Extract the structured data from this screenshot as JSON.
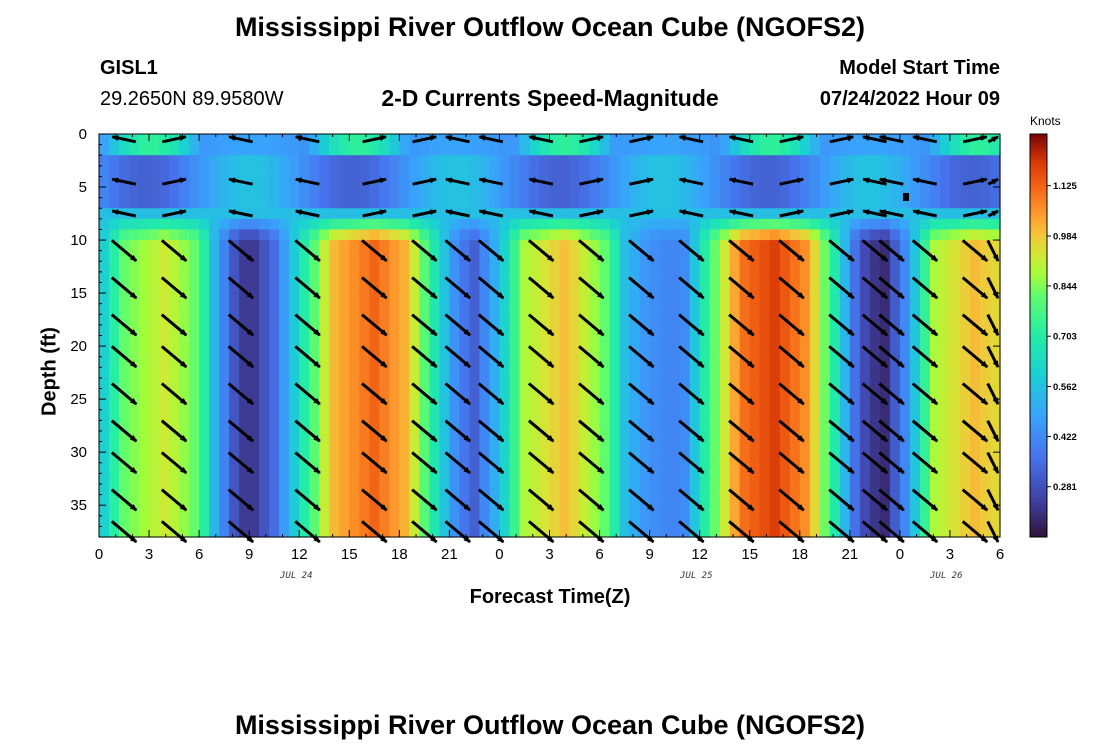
{
  "header": {
    "title": "Mississippi River Outflow Ocean Cube (NGOFS2)",
    "station_id": "GISL1",
    "station_coords": "29.2650N  89.9580W",
    "subtitle": "2-D Currents Speed-Magnitude",
    "model_start_label": "Model Start Time",
    "model_start_value": "07/24/2022 Hour 09"
  },
  "footer": {
    "title": "Mississippi River Outflow Ocean Cube (NGOFS2)"
  },
  "chart_data": {
    "type": "heatmap",
    "xlabel": "Forecast Time(Z)",
    "ylabel": "Depth (ft)",
    "x_unit": "hours",
    "x_range": [
      0,
      54
    ],
    "y_range": [
      0,
      38
    ],
    "y_inverted": true,
    "x_tick_values": [
      0,
      3,
      6,
      9,
      12,
      15,
      18,
      21,
      24,
      27,
      30,
      33,
      36,
      39,
      42,
      45,
      48,
      51,
      54
    ],
    "x_tick_labels": [
      "0",
      "3",
      "6",
      "9",
      "12",
      "15",
      "18",
      "21",
      "0",
      "3",
      "6",
      "9",
      "12",
      "15",
      "18",
      "21",
      "0",
      "3",
      "6"
    ],
    "y_ticks": [
      0,
      5,
      10,
      15,
      20,
      25,
      30,
      35
    ],
    "date_labels": [
      {
        "text": "JUL 24",
        "x": 12.5
      },
      {
        "text": "JUL 25",
        "x": 36.5
      },
      {
        "text": "JUL 26",
        "x": 51.5
      }
    ],
    "colorbar": {
      "label": "Knots",
      "ticks": [
        "0.281",
        "0.422",
        "0.562",
        "0.703",
        "0.844",
        "0.984",
        "1.125"
      ],
      "tick_values": [
        0.281,
        0.422,
        0.562,
        0.703,
        0.844,
        0.984,
        1.125
      ],
      "range": [
        0.14,
        1.27
      ]
    },
    "speed_profile": [
      {
        "x": 0,
        "v": 0.55
      },
      {
        "x": 1.5,
        "v": 0.82
      },
      {
        "x": 4,
        "v": 0.93
      },
      {
        "x": 6,
        "v": 0.8
      },
      {
        "x": 7,
        "v": 0.5
      },
      {
        "x": 8,
        "v": 0.3
      },
      {
        "x": 9,
        "v": 0.2
      },
      {
        "x": 10.5,
        "v": 0.35
      },
      {
        "x": 12.3,
        "v": 0.7
      },
      {
        "x": 14,
        "v": 1.0
      },
      {
        "x": 16.5,
        "v": 1.12
      },
      {
        "x": 18.5,
        "v": 1.0
      },
      {
        "x": 20,
        "v": 0.7
      },
      {
        "x": 21.5,
        "v": 0.4
      },
      {
        "x": 22.5,
        "v": 0.32
      },
      {
        "x": 24,
        "v": 0.55
      },
      {
        "x": 25.5,
        "v": 0.88
      },
      {
        "x": 28,
        "v": 1.0
      },
      {
        "x": 30.5,
        "v": 0.8
      },
      {
        "x": 31.5,
        "v": 0.55
      },
      {
        "x": 33,
        "v": 0.43
      },
      {
        "x": 35,
        "v": 0.4
      },
      {
        "x": 36.5,
        "v": 0.75
      },
      {
        "x": 38.5,
        "v": 1.1
      },
      {
        "x": 40.5,
        "v": 1.18
      },
      {
        "x": 42.5,
        "v": 1.05
      },
      {
        "x": 44.3,
        "v": 0.65
      },
      {
        "x": 45.5,
        "v": 0.3
      },
      {
        "x": 47,
        "v": 0.18
      },
      {
        "x": 48.5,
        "v": 0.45
      },
      {
        "x": 50,
        "v": 0.88
      },
      {
        "x": 52.5,
        "v": 1.0
      },
      {
        "x": 54,
        "v": 0.95
      }
    ],
    "vector_times": [
      1.5,
      4.5,
      8.5,
      12.5,
      16.5,
      19.5,
      21.5,
      23.5,
      26.5,
      29.5,
      32.5,
      35.5,
      38.5,
      41.5,
      44.5,
      46.5,
      47.5,
      49.5,
      52.5,
      54
    ],
    "vector_depths": [
      0.5,
      4.5,
      7.5,
      11,
      14.5,
      18,
      21,
      24.5,
      28,
      31,
      34.5,
      37.5
    ]
  }
}
